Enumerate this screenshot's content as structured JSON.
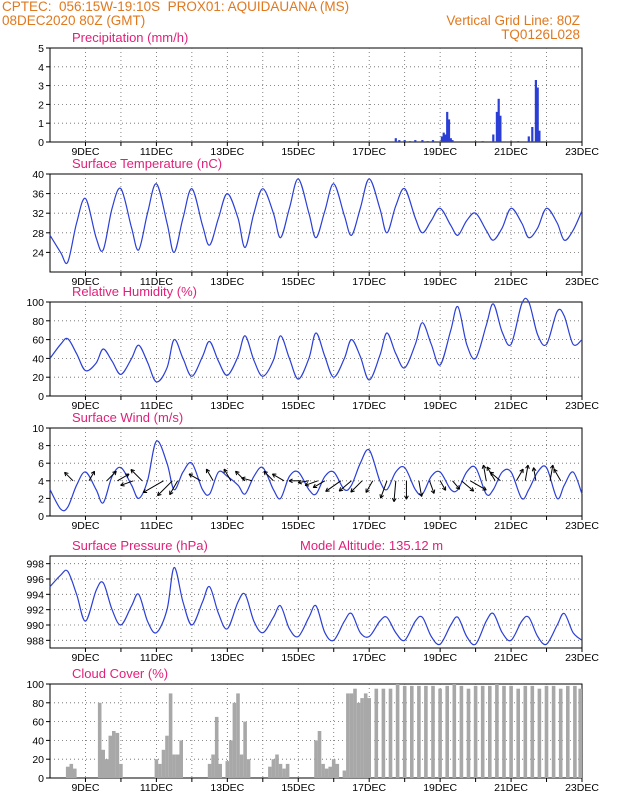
{
  "header": {
    "line1_left": "CPTEC:  056:15W-19:10S  PROX01: AQUIDAUANA (MS)",
    "line2_left": "08DEC2020 80Z (GMT)",
    "line2_right": "Vertical Grid Line: 80Z",
    "line3_right": "TQ0126L028"
  },
  "colors": {
    "header": "#e0781e",
    "title": "#e0207a",
    "line": "#2b3fd6",
    "cloud": "#a8a8a8"
  },
  "chart_data": [
    {
      "type": "bar",
      "title": "Precipitation (mm/h)",
      "x_tick_labels": [
        "9DEC",
        "11DEC",
        "13DEC",
        "15DEC",
        "17DEC",
        "19DEC",
        "21DEC",
        "23DEC"
      ],
      "x_range_days": [
        8.0,
        23.0
      ],
      "ylim": [
        0,
        5
      ],
      "y_ticks": [
        0,
        1,
        2,
        3,
        4,
        5
      ],
      "x": [
        17.75,
        17.85,
        18.0,
        18.15,
        18.3,
        18.5,
        18.65,
        18.8,
        19.05,
        19.1,
        19.15,
        19.2,
        19.25,
        19.3,
        19.35,
        20.0,
        20.2,
        20.5,
        20.6,
        20.65,
        20.7,
        21.0,
        21.2,
        21.5,
        21.6,
        21.7,
        21.75,
        21.8
      ],
      "values": [
        0.2,
        0.1,
        0.1,
        0.05,
        0.1,
        0.1,
        0.05,
        0.1,
        0.3,
        0.5,
        0.4,
        1.6,
        1.2,
        0.2,
        0.1,
        0.05,
        0.05,
        0.4,
        1.6,
        2.3,
        1.4,
        0.05,
        0.05,
        0.3,
        0.8,
        3.3,
        2.9,
        0.6
      ]
    },
    {
      "type": "line",
      "title": "Surface Temperature (nC)",
      "x_tick_labels": [
        "9DEC",
        "11DEC",
        "13DEC",
        "15DEC",
        "17DEC",
        "19DEC",
        "21DEC",
        "23DEC"
      ],
      "ylim": [
        20,
        40
      ],
      "y_ticks": [
        24,
        28,
        32,
        36,
        40
      ],
      "x": [
        8.0,
        8.3,
        8.5,
        8.75,
        9.0,
        9.3,
        9.5,
        9.75,
        10.0,
        10.3,
        10.5,
        10.75,
        11.0,
        11.3,
        11.5,
        11.75,
        12.0,
        12.3,
        12.5,
        12.75,
        13.0,
        13.3,
        13.5,
        13.75,
        14.0,
        14.3,
        14.5,
        14.75,
        15.0,
        15.3,
        15.5,
        15.75,
        16.0,
        16.3,
        16.5,
        16.75,
        17.0,
        17.3,
        17.5,
        17.75,
        18.0,
        18.3,
        18.5,
        18.75,
        19.0,
        19.3,
        19.5,
        19.75,
        20.0,
        20.3,
        20.5,
        20.75,
        21.0,
        21.3,
        21.5,
        21.75,
        22.0,
        22.3,
        22.5,
        22.75,
        23.0
      ],
      "values": [
        27.5,
        24.0,
        22.0,
        30.0,
        35.0,
        27.0,
        24.5,
        33.0,
        37.0,
        29.0,
        24.5,
        32.0,
        38.0,
        30.0,
        24.0,
        31.0,
        37.0,
        29.5,
        25.5,
        31.0,
        36.0,
        31.0,
        25.0,
        32.0,
        37.0,
        32.0,
        27.0,
        33.0,
        39.0,
        32.0,
        27.0,
        32.5,
        38.0,
        31.5,
        27.5,
        33.0,
        39.0,
        33.0,
        28.0,
        33.5,
        37.0,
        31.0,
        28.0,
        30.5,
        33.0,
        29.5,
        27.5,
        30.5,
        32.0,
        28.5,
        26.5,
        29.0,
        33.0,
        30.0,
        27.0,
        29.0,
        33.0,
        30.0,
        26.5,
        28.5,
        32.5
      ]
    },
    {
      "type": "line",
      "title": "Relative Humidity (%)",
      "x_tick_labels": [
        "9DEC",
        "11DEC",
        "13DEC",
        "15DEC",
        "17DEC",
        "19DEC",
        "21DEC",
        "23DEC"
      ],
      "ylim": [
        0,
        100
      ],
      "y_ticks": [
        0,
        20,
        40,
        60,
        80,
        100
      ],
      "x": [
        8.0,
        8.3,
        8.5,
        8.75,
        9.0,
        9.3,
        9.5,
        9.75,
        10.0,
        10.3,
        10.5,
        10.75,
        11.0,
        11.3,
        11.5,
        11.75,
        12.0,
        12.3,
        12.5,
        12.75,
        13.0,
        13.3,
        13.5,
        13.75,
        14.0,
        14.3,
        14.5,
        14.75,
        15.0,
        15.3,
        15.5,
        15.75,
        16.0,
        16.3,
        16.5,
        16.75,
        17.0,
        17.3,
        17.5,
        17.75,
        18.0,
        18.3,
        18.5,
        18.75,
        19.0,
        19.3,
        19.5,
        19.75,
        20.0,
        20.3,
        20.5,
        20.75,
        21.0,
        21.3,
        21.5,
        21.75,
        22.0,
        22.3,
        22.5,
        22.75,
        23.0
      ],
      "values": [
        40,
        55,
        61,
        45,
        27,
        35,
        50,
        37,
        23,
        40,
        54,
        36,
        15,
        30,
        60,
        40,
        21,
        42,
        58,
        37,
        22,
        42,
        64,
        38,
        21,
        38,
        64,
        40,
        18,
        40,
        67,
        42,
        20,
        40,
        60,
        42,
        17,
        43,
        67,
        45,
        30,
        55,
        78,
        55,
        33,
        70,
        95,
        55,
        40,
        75,
        98,
        68,
        55,
        98,
        100,
        65,
        55,
        90,
        85,
        55,
        60
      ]
    },
    {
      "type": "line",
      "title": "Surface Wind (m/s)",
      "x_tick_labels": [
        "9DEC",
        "11DEC",
        "13DEC",
        "15DEC",
        "17DEC",
        "19DEC",
        "21DEC",
        "23DEC"
      ],
      "ylim": [
        0,
        10
      ],
      "y_ticks": [
        0,
        2,
        4,
        6,
        8,
        10
      ],
      "x": [
        8.0,
        8.3,
        8.5,
        8.75,
        9.0,
        9.3,
        9.5,
        9.75,
        10.0,
        10.3,
        10.5,
        10.75,
        11.0,
        11.3,
        11.5,
        11.75,
        12.0,
        12.3,
        12.5,
        12.75,
        13.0,
        13.3,
        13.5,
        13.75,
        14.0,
        14.3,
        14.5,
        14.75,
        15.0,
        15.3,
        15.5,
        15.75,
        16.0,
        16.3,
        16.5,
        16.75,
        17.0,
        17.3,
        17.5,
        17.75,
        18.0,
        18.3,
        18.5,
        18.75,
        19.0,
        19.3,
        19.5,
        19.75,
        20.0,
        20.3,
        20.5,
        20.75,
        21.0,
        21.3,
        21.5,
        21.75,
        22.0,
        22.3,
        22.5,
        22.75,
        23.0
      ],
      "values": [
        3.0,
        0.8,
        1.0,
        3.5,
        5.0,
        3.0,
        1.5,
        4.5,
        5.5,
        3.5,
        2.0,
        4.0,
        8.5,
        6.0,
        3.0,
        5.0,
        6.0,
        3.0,
        2.5,
        5.0,
        4.5,
        3.5,
        2.5,
        4.5,
        5.5,
        3.0,
        2.0,
        4.5,
        5.0,
        3.0,
        2.5,
        4.5,
        5.0,
        3.0,
        3.5,
        6.0,
        7.5,
        4.0,
        3.0,
        5.0,
        5.5,
        3.0,
        2.5,
        4.5,
        5.0,
        3.0,
        3.0,
        5.0,
        5.5,
        2.5,
        3.0,
        5.0,
        5.0,
        2.0,
        3.0,
        5.0,
        5.5,
        2.0,
        3.5,
        5.0,
        2.5
      ]
    },
    {
      "type": "line",
      "title": "Surface Pressure (hPa)",
      "subtitle": "Model Altitude: 135.12 m",
      "x_tick_labels": [
        "9DEC",
        "11DEC",
        "13DEC",
        "15DEC",
        "17DEC",
        "19DEC",
        "21DEC",
        "23DEC"
      ],
      "ylim": [
        987,
        999
      ],
      "y_ticks": [
        988,
        990,
        992,
        994,
        996,
        998
      ],
      "x": [
        8.0,
        8.3,
        8.5,
        8.75,
        9.0,
        9.3,
        9.5,
        9.75,
        10.0,
        10.3,
        10.5,
        10.75,
        11.0,
        11.3,
        11.5,
        11.75,
        12.0,
        12.3,
        12.5,
        12.75,
        13.0,
        13.3,
        13.5,
        13.75,
        14.0,
        14.3,
        14.5,
        14.75,
        15.0,
        15.3,
        15.5,
        15.75,
        16.0,
        16.3,
        16.5,
        16.75,
        17.0,
        17.3,
        17.5,
        17.75,
        18.0,
        18.3,
        18.5,
        18.75,
        19.0,
        19.3,
        19.5,
        19.75,
        20.0,
        20.3,
        20.5,
        20.75,
        21.0,
        21.3,
        21.5,
        21.75,
        22.0,
        22.3,
        22.5,
        22.75,
        23.0
      ],
      "values": [
        995.0,
        996.5,
        997.0,
        994.0,
        990.5,
        994.5,
        995.5,
        992.0,
        990.0,
        992.5,
        994.0,
        990.5,
        989.0,
        992.0,
        997.5,
        993.0,
        990.0,
        993.0,
        995.0,
        991.5,
        989.5,
        993.0,
        994.0,
        990.5,
        989.0,
        991.0,
        992.5,
        989.5,
        988.5,
        991.0,
        992.5,
        989.0,
        988.0,
        990.5,
        991.5,
        989.0,
        988.5,
        990.5,
        991.0,
        989.0,
        988.0,
        990.5,
        991.0,
        988.5,
        987.5,
        990.0,
        991.0,
        988.5,
        987.5,
        990.5,
        991.5,
        989.0,
        988.0,
        990.5,
        991.0,
        988.5,
        987.5,
        990.0,
        991.5,
        989.0,
        988.0
      ]
    },
    {
      "type": "bar",
      "title": "Cloud Cover (%)",
      "x_tick_labels": [
        "9DEC",
        "11DEC",
        "13DEC",
        "15DEC",
        "17DEC",
        "19DEC",
        "21DEC",
        "23DEC"
      ],
      "ylim": [
        0,
        100
      ],
      "y_ticks": [
        0,
        20,
        40,
        60,
        80,
        100
      ],
      "x": [
        8.5,
        8.6,
        8.7,
        9.4,
        9.5,
        9.6,
        9.7,
        9.8,
        9.9,
        10.0,
        11.0,
        11.1,
        11.2,
        11.3,
        11.4,
        11.5,
        11.6,
        11.7,
        12.5,
        12.6,
        12.7,
        12.8,
        13.0,
        13.1,
        13.2,
        13.3,
        13.4,
        13.5,
        13.6,
        14.2,
        14.3,
        14.4,
        14.5,
        14.6,
        14.7,
        15.5,
        15.6,
        15.7,
        15.8,
        15.9,
        16.0,
        16.1,
        16.3,
        16.4,
        16.5,
        16.6,
        16.7,
        16.8,
        16.9,
        17.0,
        17.2,
        17.4,
        17.6,
        17.8,
        18.0,
        18.2,
        18.4,
        18.6,
        18.8,
        19.0,
        19.2,
        19.4,
        19.6,
        19.8,
        20.0,
        20.2,
        20.4,
        20.6,
        20.8,
        21.0,
        21.2,
        21.4,
        21.6,
        21.8,
        22.0,
        22.2,
        22.4,
        22.6,
        22.8,
        22.95
      ],
      "values": [
        12,
        15,
        10,
        80,
        30,
        20,
        45,
        50,
        48,
        15,
        20,
        15,
        30,
        45,
        90,
        25,
        25,
        40,
        15,
        25,
        65,
        15,
        18,
        40,
        80,
        90,
        25,
        60,
        20,
        12,
        20,
        25,
        15,
        10,
        15,
        40,
        50,
        15,
        10,
        12,
        20,
        15,
        8,
        90,
        90,
        95,
        80,
        85,
        90,
        85,
        95,
        95,
        95,
        100,
        98,
        98,
        98,
        98,
        98,
        95,
        98,
        100,
        98,
        95,
        98,
        98,
        98,
        100,
        98,
        98,
        95,
        98,
        98,
        95,
        98,
        98,
        95,
        98,
        98,
        95
      ]
    }
  ],
  "wind_arrows": {
    "x": [
      8.65,
      9.1,
      9.6,
      9.9,
      10.35,
      10.6,
      11.2,
      11.45,
      11.6,
      12.25,
      12.6,
      13.1,
      13.5,
      13.7,
      14.3,
      14.6,
      15.05,
      15.3,
      15.55,
      15.75,
      16.2,
      16.5,
      16.8,
      17.1,
      17.5,
      17.75,
      18.05,
      18.4,
      18.7,
      19.0,
      19.35,
      19.6,
      19.85,
      20.3,
      20.55,
      20.7,
      21.15,
      21.4,
      21.7,
      22.1,
      22.4
    ],
    "dir_deg": [
      135,
      60,
      45,
      30,
      200,
      135,
      210,
      225,
      240,
      150,
      120,
      120,
      135,
      165,
      135,
      150,
      180,
      190,
      200,
      210,
      215,
      220,
      225,
      240,
      250,
      265,
      270,
      280,
      290,
      300,
      310,
      320,
      330,
      100,
      120,
      140,
      60,
      80,
      100,
      80,
      120
    ],
    "speed": [
      1.2,
      1.0,
      1.5,
      1.5,
      1.5,
      2.0,
      3.5,
      3.0,
      2.0,
      1.5,
      1.5,
      1.5,
      1.5,
      1.0,
      1.5,
      1.5,
      1.0,
      1.0,
      1.5,
      1.5,
      2.5,
      2.0,
      2.0,
      1.5,
      2.5,
      3.0,
      2.5,
      2.0,
      1.5,
      1.0,
      1.0,
      2.0,
      2.5,
      2.0,
      2.0,
      1.5,
      1.5,
      2.0,
      1.5,
      2.0,
      1.5
    ]
  }
}
